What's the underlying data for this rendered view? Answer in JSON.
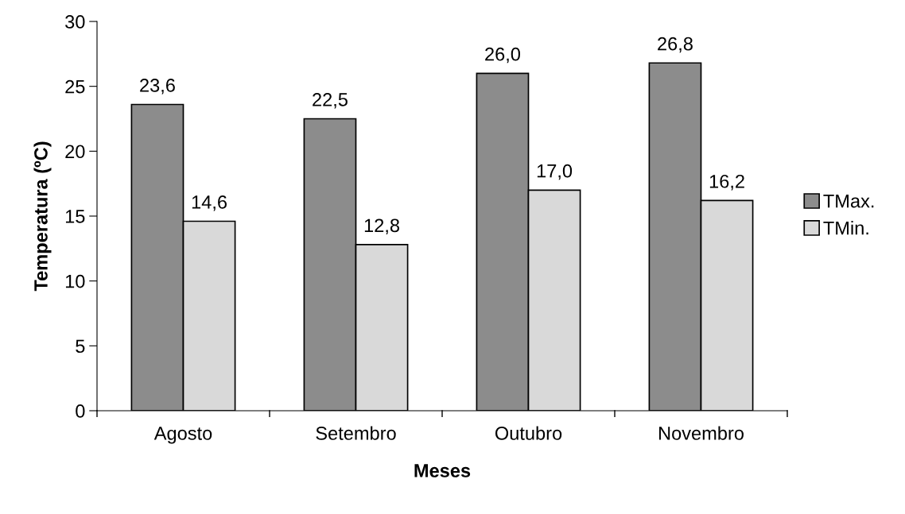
{
  "chart_data": {
    "type": "bar",
    "xlabel": "Meses",
    "ylabel": "Temperatura (ºC)",
    "categories": [
      "Agosto",
      "Setembro",
      "Outubro",
      "Novembro"
    ],
    "series": [
      {
        "name": "TMax.",
        "color": "#8c8c8c",
        "values": [
          23.6,
          22.5,
          26.0,
          26.8
        ],
        "value_labels": [
          "23,6",
          "22,5",
          "26,0",
          "26,8"
        ]
      },
      {
        "name": "TMin.",
        "color": "#d9d9d9",
        "values": [
          14.6,
          12.8,
          17.0,
          16.2
        ],
        "value_labels": [
          "14,6",
          "12,8",
          "17,0",
          "16,2"
        ]
      }
    ],
    "ylim": [
      0,
      30
    ],
    "yticks": [
      0,
      5,
      10,
      15,
      20,
      25,
      30
    ],
    "grid": false,
    "legend": "right"
  }
}
